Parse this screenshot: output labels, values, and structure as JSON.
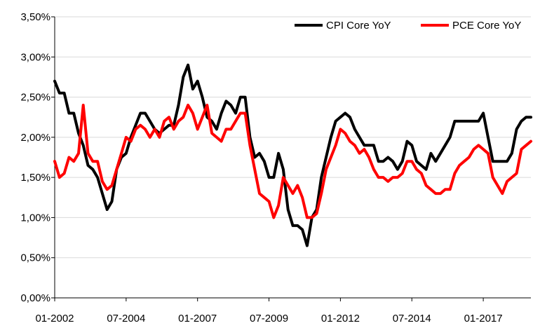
{
  "chart_data": {
    "type": "line",
    "title": "",
    "xlabel": "",
    "ylabel": "",
    "x_range": [
      "2002-01",
      "2018-09"
    ],
    "ylim": [
      0,
      3.5
    ],
    "y_ticks": [
      {
        "value": 0.0,
        "label": "0,00%"
      },
      {
        "value": 0.5,
        "label": "0,50%"
      },
      {
        "value": 1.0,
        "label": "1,00%"
      },
      {
        "value": 1.5,
        "label": "1,50%"
      },
      {
        "value": 2.0,
        "label": "2,00%"
      },
      {
        "value": 2.5,
        "label": "2,50%"
      },
      {
        "value": 3.0,
        "label": "3,00%"
      },
      {
        "value": 3.5,
        "label": "3,50%"
      }
    ],
    "x_ticks": [
      {
        "value": "2002-01",
        "label": "01-2002"
      },
      {
        "value": "2004-07",
        "label": "07-2004"
      },
      {
        "value": "2007-01",
        "label": "01-2007"
      },
      {
        "value": "2009-07",
        "label": "07-2009"
      },
      {
        "value": "2012-01",
        "label": "01-2012"
      },
      {
        "value": "2014-07",
        "label": "07-2014"
      },
      {
        "value": "2017-01",
        "label": "01-2017"
      }
    ],
    "grid": "horizontal",
    "legend_position": "top-right",
    "series": [
      {
        "name": "CPI Core YoY",
        "color": "#000000",
        "points": [
          [
            "2002-01",
            2.7
          ],
          [
            "2002-03",
            2.55
          ],
          [
            "2002-05",
            2.55
          ],
          [
            "2002-07",
            2.3
          ],
          [
            "2002-09",
            2.3
          ],
          [
            "2002-11",
            2.05
          ],
          [
            "2003-01",
            1.9
          ],
          [
            "2003-03",
            1.65
          ],
          [
            "2003-05",
            1.6
          ],
          [
            "2003-07",
            1.5
          ],
          [
            "2003-09",
            1.3
          ],
          [
            "2003-11",
            1.1
          ],
          [
            "2004-01",
            1.2
          ],
          [
            "2004-03",
            1.6
          ],
          [
            "2004-05",
            1.75
          ],
          [
            "2004-07",
            1.8
          ],
          [
            "2004-09",
            2.0
          ],
          [
            "2004-11",
            2.15
          ],
          [
            "2005-01",
            2.3
          ],
          [
            "2005-03",
            2.3
          ],
          [
            "2005-05",
            2.2
          ],
          [
            "2005-07",
            2.1
          ],
          [
            "2005-09",
            2.05
          ],
          [
            "2005-11",
            2.1
          ],
          [
            "2006-01",
            2.15
          ],
          [
            "2006-03",
            2.15
          ],
          [
            "2006-05",
            2.4
          ],
          [
            "2006-07",
            2.75
          ],
          [
            "2006-09",
            2.9
          ],
          [
            "2006-11",
            2.6
          ],
          [
            "2007-01",
            2.7
          ],
          [
            "2007-03",
            2.5
          ],
          [
            "2007-05",
            2.25
          ],
          [
            "2007-07",
            2.2
          ],
          [
            "2007-09",
            2.1
          ],
          [
            "2007-11",
            2.3
          ],
          [
            "2008-01",
            2.45
          ],
          [
            "2008-03",
            2.4
          ],
          [
            "2008-05",
            2.3
          ],
          [
            "2008-07",
            2.5
          ],
          [
            "2008-09",
            2.5
          ],
          [
            "2008-11",
            2.0
          ],
          [
            "2009-01",
            1.75
          ],
          [
            "2009-03",
            1.8
          ],
          [
            "2009-05",
            1.7
          ],
          [
            "2009-07",
            1.5
          ],
          [
            "2009-09",
            1.5
          ],
          [
            "2009-11",
            1.8
          ],
          [
            "2010-01",
            1.6
          ],
          [
            "2010-03",
            1.1
          ],
          [
            "2010-05",
            0.9
          ],
          [
            "2010-07",
            0.9
          ],
          [
            "2010-09",
            0.85
          ],
          [
            "2010-11",
            0.65
          ],
          [
            "2011-01",
            1.0
          ],
          [
            "2011-03",
            1.1
          ],
          [
            "2011-05",
            1.5
          ],
          [
            "2011-07",
            1.75
          ],
          [
            "2011-09",
            2.0
          ],
          [
            "2011-11",
            2.2
          ],
          [
            "2012-01",
            2.25
          ],
          [
            "2012-03",
            2.3
          ],
          [
            "2012-05",
            2.25
          ],
          [
            "2012-07",
            2.1
          ],
          [
            "2012-09",
            2.0
          ],
          [
            "2012-11",
            1.9
          ],
          [
            "2013-01",
            1.9
          ],
          [
            "2013-03",
            1.9
          ],
          [
            "2013-05",
            1.7
          ],
          [
            "2013-07",
            1.7
          ],
          [
            "2013-09",
            1.75
          ],
          [
            "2013-11",
            1.7
          ],
          [
            "2014-01",
            1.6
          ],
          [
            "2014-03",
            1.7
          ],
          [
            "2014-05",
            1.95
          ],
          [
            "2014-07",
            1.9
          ],
          [
            "2014-09",
            1.7
          ],
          [
            "2014-11",
            1.65
          ],
          [
            "2015-01",
            1.6
          ],
          [
            "2015-03",
            1.8
          ],
          [
            "2015-05",
            1.7
          ],
          [
            "2015-07",
            1.8
          ],
          [
            "2015-09",
            1.9
          ],
          [
            "2015-11",
            2.0
          ],
          [
            "2016-01",
            2.2
          ],
          [
            "2016-03",
            2.2
          ],
          [
            "2016-05",
            2.2
          ],
          [
            "2016-07",
            2.2
          ],
          [
            "2016-09",
            2.2
          ],
          [
            "2016-11",
            2.2
          ],
          [
            "2017-01",
            2.3
          ],
          [
            "2017-03",
            2.0
          ],
          [
            "2017-05",
            1.7
          ],
          [
            "2017-07",
            1.7
          ],
          [
            "2017-09",
            1.7
          ],
          [
            "2017-11",
            1.7
          ],
          [
            "2018-01",
            1.8
          ],
          [
            "2018-03",
            2.1
          ],
          [
            "2018-05",
            2.2
          ],
          [
            "2018-07",
            2.25
          ],
          [
            "2018-09",
            2.25
          ]
        ]
      },
      {
        "name": "PCE Core YoY",
        "color": "#ff0000",
        "points": [
          [
            "2002-01",
            1.7
          ],
          [
            "2002-03",
            1.5
          ],
          [
            "2002-05",
            1.55
          ],
          [
            "2002-07",
            1.75
          ],
          [
            "2002-09",
            1.7
          ],
          [
            "2002-11",
            1.8
          ],
          [
            "2003-01",
            2.4
          ],
          [
            "2003-03",
            1.8
          ],
          [
            "2003-05",
            1.7
          ],
          [
            "2003-07",
            1.7
          ],
          [
            "2003-09",
            1.45
          ],
          [
            "2003-11",
            1.35
          ],
          [
            "2004-01",
            1.4
          ],
          [
            "2004-03",
            1.6
          ],
          [
            "2004-05",
            1.8
          ],
          [
            "2004-07",
            2.0
          ],
          [
            "2004-09",
            1.95
          ],
          [
            "2004-11",
            2.1
          ],
          [
            "2005-01",
            2.15
          ],
          [
            "2005-03",
            2.1
          ],
          [
            "2005-05",
            2.0
          ],
          [
            "2005-07",
            2.1
          ],
          [
            "2005-09",
            2.0
          ],
          [
            "2005-11",
            2.2
          ],
          [
            "2006-01",
            2.25
          ],
          [
            "2006-03",
            2.1
          ],
          [
            "2006-05",
            2.2
          ],
          [
            "2006-07",
            2.25
          ],
          [
            "2006-09",
            2.4
          ],
          [
            "2006-11",
            2.3
          ],
          [
            "2007-01",
            2.1
          ],
          [
            "2007-03",
            2.25
          ],
          [
            "2007-05",
            2.4
          ],
          [
            "2007-07",
            2.05
          ],
          [
            "2007-09",
            2.0
          ],
          [
            "2007-11",
            1.95
          ],
          [
            "2008-01",
            2.1
          ],
          [
            "2008-03",
            2.1
          ],
          [
            "2008-05",
            2.2
          ],
          [
            "2008-07",
            2.3
          ],
          [
            "2008-09",
            2.3
          ],
          [
            "2008-11",
            1.9
          ],
          [
            "2009-01",
            1.6
          ],
          [
            "2009-03",
            1.3
          ],
          [
            "2009-05",
            1.25
          ],
          [
            "2009-07",
            1.2
          ],
          [
            "2009-09",
            1.0
          ],
          [
            "2009-11",
            1.15
          ],
          [
            "2010-01",
            1.5
          ],
          [
            "2010-03",
            1.4
          ],
          [
            "2010-05",
            1.3
          ],
          [
            "2010-07",
            1.4
          ],
          [
            "2010-09",
            1.25
          ],
          [
            "2010-11",
            1.0
          ],
          [
            "2011-01",
            1.0
          ],
          [
            "2011-03",
            1.05
          ],
          [
            "2011-05",
            1.3
          ],
          [
            "2011-07",
            1.6
          ],
          [
            "2011-09",
            1.75
          ],
          [
            "2011-11",
            1.9
          ],
          [
            "2012-01",
            2.1
          ],
          [
            "2012-03",
            2.05
          ],
          [
            "2012-05",
            1.95
          ],
          [
            "2012-07",
            1.9
          ],
          [
            "2012-09",
            1.8
          ],
          [
            "2012-11",
            1.85
          ],
          [
            "2013-01",
            1.75
          ],
          [
            "2013-03",
            1.6
          ],
          [
            "2013-05",
            1.5
          ],
          [
            "2013-07",
            1.5
          ],
          [
            "2013-09",
            1.45
          ],
          [
            "2013-11",
            1.5
          ],
          [
            "2014-01",
            1.5
          ],
          [
            "2014-03",
            1.55
          ],
          [
            "2014-05",
            1.7
          ],
          [
            "2014-07",
            1.7
          ],
          [
            "2014-09",
            1.6
          ],
          [
            "2014-11",
            1.55
          ],
          [
            "2015-01",
            1.4
          ],
          [
            "2015-03",
            1.35
          ],
          [
            "2015-05",
            1.3
          ],
          [
            "2015-07",
            1.3
          ],
          [
            "2015-09",
            1.35
          ],
          [
            "2015-11",
            1.35
          ],
          [
            "2016-01",
            1.55
          ],
          [
            "2016-03",
            1.65
          ],
          [
            "2016-05",
            1.7
          ],
          [
            "2016-07",
            1.75
          ],
          [
            "2016-09",
            1.85
          ],
          [
            "2016-11",
            1.9
          ],
          [
            "2017-01",
            1.85
          ],
          [
            "2017-03",
            1.8
          ],
          [
            "2017-05",
            1.5
          ],
          [
            "2017-07",
            1.4
          ],
          [
            "2017-09",
            1.3
          ],
          [
            "2017-11",
            1.45
          ],
          [
            "2018-01",
            1.5
          ],
          [
            "2018-03",
            1.55
          ],
          [
            "2018-05",
            1.85
          ],
          [
            "2018-07",
            1.9
          ],
          [
            "2018-09",
            1.95
          ]
        ]
      }
    ]
  }
}
